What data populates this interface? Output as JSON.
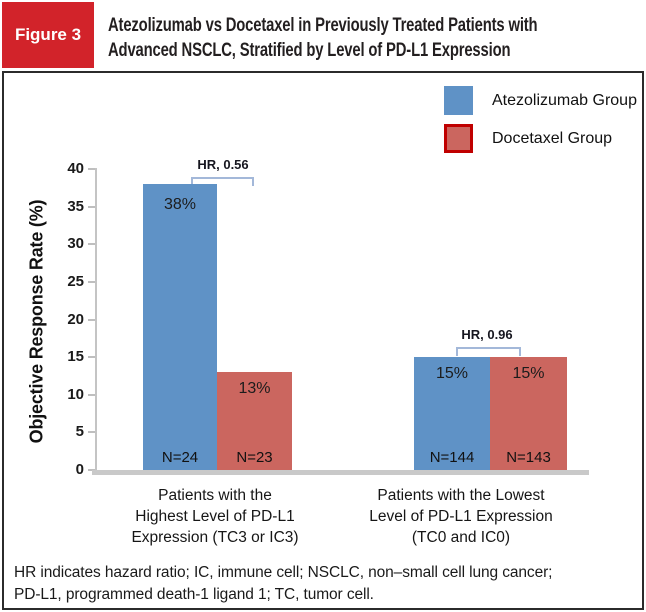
{
  "figure": {
    "badge": "Figure 3",
    "title_lines": [
      "Atezolizumab vs Docetaxel in Previously Treated Patients with",
      "Advanced NSCLC, Stratified by Level of PD-L1 Expression"
    ],
    "badge_color": "#d2232a"
  },
  "chart_data": {
    "type": "bar",
    "ylabel": "Objective Response Rate (%)",
    "ylim": [
      0,
      40
    ],
    "ytick_step": 5,
    "yticks_top_to_bottom": [
      "40",
      "35",
      "30",
      "25",
      "20",
      "15",
      "10",
      "5",
      "0"
    ],
    "grid": false,
    "legend_position": "top-right",
    "legend": [
      {
        "name": "Atezolizumab Group",
        "color": "#5f92c6"
      },
      {
        "name": "Docetaxel Group",
        "color": "#cb665f",
        "border": "#c00000"
      }
    ],
    "categories": [
      "Patients with the Highest Level of PD-L1 Expression (TC3 or IC3)",
      "Patients with the Lowest Level of PD-L1 Expression (TC0 and IC0)"
    ],
    "groups": [
      {
        "label_lines": [
          "Patients with the",
          "Highest Level of PD-L1",
          "Expression (TC3 or IC3)"
        ],
        "hr_label": "HR, 0.56",
        "bars": [
          {
            "series": "Atezolizumab Group",
            "value_pct": 38,
            "value_label": "38%",
            "n_label": "N=24"
          },
          {
            "series": "Docetaxel Group",
            "value_pct": 13,
            "value_label": "13%",
            "n_label": "N=23"
          }
        ]
      },
      {
        "label_lines": [
          "Patients with the Lowest",
          "Level of PD-L1 Expression",
          "(TC0 and IC0)"
        ],
        "hr_label": "HR, 0.96",
        "bars": [
          {
            "series": "Atezolizumab Group",
            "value_pct": 15,
            "value_label": "15%",
            "n_label": "N=144"
          },
          {
            "series": "Docetaxel Group",
            "value_pct": 15,
            "value_label": "15%",
            "n_label": "N=143"
          }
        ]
      }
    ]
  },
  "footnote_lines": [
    "HR indicates hazard ratio; IC, immune cell; NSCLC, non–small cell lung cancer;",
    "PD-L1, programmed death-1 ligand 1; TC, tumor cell."
  ]
}
